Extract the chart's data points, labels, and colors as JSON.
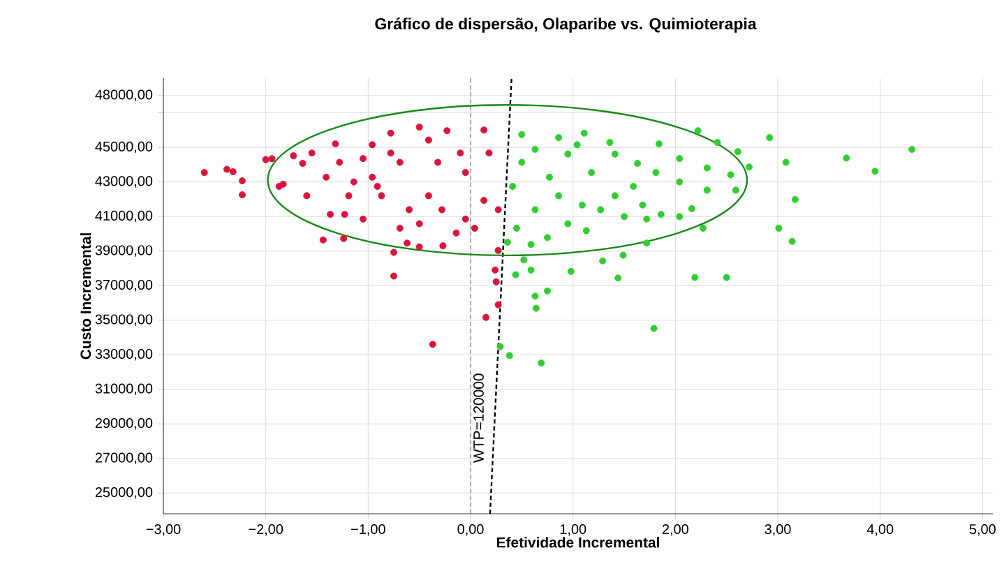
{
  "chart_data": {
    "type": "scatter",
    "title": "Gráfico de dispersão, Olaparibe vs. Quimioterapia",
    "xlabel": "Efetividade Incremental",
    "ylabel": "Custo Incremental",
    "xlim": [
      -3,
      5.1
    ],
    "ylim": [
      23800,
      49000
    ],
    "xticks": [
      {
        "value": -3,
        "label": "−3,00"
      },
      {
        "value": -2,
        "label": "−2,00"
      },
      {
        "value": -1,
        "label": "−1,00"
      },
      {
        "value": 0,
        "label": "0,00"
      },
      {
        "value": 1,
        "label": "1,00"
      },
      {
        "value": 2,
        "label": "2,00"
      },
      {
        "value": 3,
        "label": "3,00"
      },
      {
        "value": 4,
        "label": "4,00"
      },
      {
        "value": 5,
        "label": "5,00"
      }
    ],
    "yticks": [
      {
        "value": 25000,
        "label": "25000,00"
      },
      {
        "value": 27000,
        "label": "27000,00"
      },
      {
        "value": 29000,
        "label": "29000,00"
      },
      {
        "value": 31000,
        "label": "31000,00"
      },
      {
        "value": 33000,
        "label": "33000,00"
      },
      {
        "value": 35000,
        "label": "35000,00"
      },
      {
        "value": 37000,
        "label": "37000,00"
      },
      {
        "value": 39000,
        "label": "39000,00"
      },
      {
        "value": 41000,
        "label": "41000,00"
      },
      {
        "value": 43000,
        "label": "43000,00"
      },
      {
        "value": 45000,
        "label": "45000,00"
      },
      {
        "value": 47000,
        "label": null
      },
      {
        "value": 48000,
        "label": "48000,00"
      }
    ],
    "grid": true,
    "marker": "circle",
    "ref_lines": [
      {
        "axis": "x",
        "value": 0,
        "color": "#808080",
        "line_style": "dashed"
      }
    ],
    "annotations": [
      "WTP=120000"
    ],
    "series": [
      {
        "color": "#dc143c",
        "x": [
          -2.6,
          -2.38,
          -2.32,
          -2.23,
          -2.23,
          -2.0,
          -1.94,
          -1.83,
          -1.44,
          -1.24,
          -0.75,
          -0.75,
          -0.37,
          0.15,
          0.27,
          0.25,
          0.24,
          0.27,
          -0.27,
          -0.62,
          -1.32,
          -0.5,
          -0.23,
          0.13,
          -0.78,
          -0.96,
          -1.19,
          -1.37,
          -1.05,
          -0.5,
          -0.14,
          0.04,
          -1.64,
          -1.55,
          -1.73,
          -1.41,
          -0.96,
          -0.69,
          -0.32,
          -0.05,
          0.18,
          0.27,
          0.13,
          -0.41,
          -0.6,
          -0.87,
          -1.14,
          -1.28,
          -1.87,
          -1.6,
          -0.28,
          -0.05,
          -0.1,
          -0.41,
          -0.78,
          -1.05,
          -0.91,
          -0.69,
          -0.5,
          -1.23
        ],
        "values": [
          43540,
          43730,
          43590,
          43060,
          42250,
          44290,
          44340,
          42870,
          39640,
          39720,
          38920,
          37550,
          33600,
          35160,
          35890,
          37220,
          37900,
          39030,
          39300,
          39460,
          45200,
          46170,
          45960,
          46000,
          45820,
          45150,
          42200,
          41120,
          40850,
          40580,
          40040,
          40320,
          44070,
          44670,
          44510,
          43270,
          43270,
          44130,
          44130,
          43540,
          44670,
          41390,
          41930,
          42200,
          41390,
          42200,
          43000,
          44130,
          42740,
          42200,
          41390,
          40850,
          44670,
          45420,
          44670,
          44350,
          42740,
          40320,
          39240,
          41120
        ]
      },
      {
        "color": "#32cd32",
        "x": [
          4.31,
          3.95,
          3.67,
          2.92,
          3.08,
          3.17,
          3.01,
          3.14,
          2.5,
          2.19,
          1.79,
          0.69,
          0.38,
          0.29,
          0.63,
          0.64,
          0.75,
          0.44,
          0.59,
          0.98,
          1.44,
          1.29,
          1.49,
          0.52,
          1.72,
          2.27,
          2.72,
          2.61,
          2.41,
          2.22,
          1.84,
          1.11,
          0.5,
          0.86,
          1.36,
          1.63,
          2.04,
          2.31,
          2.54,
          2.59,
          2.31,
          2.16,
          2.04,
          1.86,
          1.72,
          1.5,
          1.27,
          1.13,
          0.95,
          0.75,
          0.59,
          0.36,
          0.45,
          0.63,
          0.86,
          1.09,
          1.41,
          1.59,
          1.81,
          1.18,
          0.77,
          0.5,
          0.41,
          0.95,
          1.41,
          1.04,
          0.63,
          2.04,
          1.68
        ],
        "values": [
          44880,
          43620,
          44380,
          45560,
          44130,
          41980,
          40320,
          39560,
          37470,
          37470,
          34520,
          32520,
          32950,
          33470,
          36390,
          35690,
          36690,
          37630,
          37900,
          37820,
          37440,
          38430,
          38760,
          38490,
          39460,
          40320,
          43860,
          44750,
          45280,
          45960,
          45200,
          45820,
          45740,
          45560,
          45280,
          44070,
          44350,
          43810,
          43410,
          42520,
          42520,
          41450,
          40990,
          41120,
          40850,
          40990,
          41390,
          40180,
          40580,
          39780,
          39380,
          39510,
          40320,
          41390,
          42200,
          41660,
          42200,
          42740,
          43540,
          43540,
          43270,
          44130,
          42740,
          44610,
          44610,
          45150,
          44880,
          43000,
          41660
        ]
      },
      {
        "type": "line",
        "color": "#000000",
        "marker": "none",
        "line_style": "dashed",
        "x": [
          0.19,
          0.4
        ],
        "values": [
          23800,
          49000
        ]
      }
    ]
  }
}
